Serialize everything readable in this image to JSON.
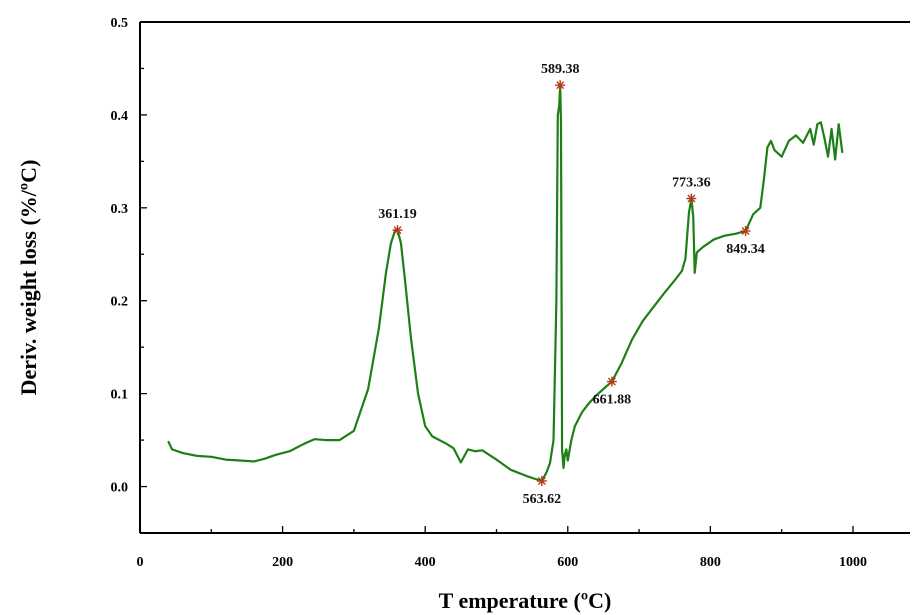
{
  "chart_data": {
    "type": "line",
    "xlabel": "T emperature (ºC)",
    "ylabel": "Deriv. weight loss (%/ºC)",
    "xlim": [
      0,
      1080
    ],
    "ylim": [
      -0.05,
      0.5
    ],
    "x_ticks": [
      {
        "value": 0,
        "label": "0"
      },
      {
        "value": 200,
        "label": "200"
      },
      {
        "value": 400,
        "label": "400"
      },
      {
        "value": 600,
        "label": "600"
      },
      {
        "value": 800,
        "label": "800"
      },
      {
        "value": 1000,
        "label": "1000"
      }
    ],
    "y_ticks": [
      {
        "value": 0.0,
        "label": "0.0"
      },
      {
        "value": 0.1,
        "label": "0.1"
      },
      {
        "value": 0.2,
        "label": "0.2"
      },
      {
        "value": 0.3,
        "label": "0.3"
      },
      {
        "value": 0.4,
        "label": "0.4"
      },
      {
        "value": 0.5,
        "label": "0.5"
      }
    ],
    "grid": false,
    "series": [
      {
        "color": "#1f7f17",
        "x": [
          40,
          45,
          60,
          80,
          100,
          120,
          140,
          160,
          175,
          190,
          210,
          230,
          245,
          260,
          280,
          300,
          320,
          335,
          345,
          352,
          358,
          361.19,
          366,
          372,
          380,
          390,
          400,
          410,
          420,
          430,
          440,
          450,
          460,
          470,
          480,
          500,
          520,
          540,
          555,
          563.62,
          570,
          575,
          580,
          584,
          586,
          588,
          589.38,
          590.5,
          592,
          594,
          596,
          598,
          600,
          605,
          610,
          620,
          630,
          640,
          650,
          661.88,
          675,
          690,
          705,
          720,
          735,
          750,
          760,
          765,
          770,
          773.36,
          776,
          778,
          781,
          790,
          805,
          820,
          835,
          849.34,
          860,
          870,
          875,
          880,
          885,
          890,
          900,
          910,
          920,
          930,
          940,
          945,
          950,
          955,
          960,
          965,
          970,
          975,
          980,
          985
        ],
        "values": [
          0.048,
          0.04,
          0.036,
          0.033,
          0.032,
          0.029,
          0.028,
          0.027,
          0.03,
          0.034,
          0.038,
          0.046,
          0.051,
          0.05,
          0.05,
          0.06,
          0.105,
          0.17,
          0.23,
          0.262,
          0.276,
          0.276,
          0.262,
          0.22,
          0.16,
          0.1,
          0.065,
          0.054,
          0.05,
          0.046,
          0.041,
          0.026,
          0.04,
          0.038,
          0.039,
          0.029,
          0.018,
          0.012,
          0.008,
          0.006,
          0.015,
          0.025,
          0.05,
          0.2,
          0.4,
          0.41,
          0.432,
          0.39,
          0.04,
          0.02,
          0.035,
          0.04,
          0.028,
          0.05,
          0.065,
          0.08,
          0.09,
          0.098,
          0.105,
          0.113,
          0.132,
          0.158,
          0.178,
          0.193,
          0.208,
          0.222,
          0.232,
          0.245,
          0.295,
          0.31,
          0.29,
          0.23,
          0.252,
          0.258,
          0.266,
          0.27,
          0.272,
          0.275,
          0.293,
          0.3,
          0.33,
          0.365,
          0.372,
          0.362,
          0.355,
          0.372,
          0.378,
          0.37,
          0.385,
          0.368,
          0.39,
          0.392,
          0.375,
          0.355,
          0.385,
          0.352,
          0.39,
          0.36
        ]
      }
    ],
    "annotations": [
      {
        "x": 361.19,
        "y": 0.276,
        "label": "361.19",
        "position": "above"
      },
      {
        "x": 563.62,
        "y": 0.006,
        "label": "563.62",
        "position": "below"
      },
      {
        "x": 589.38,
        "y": 0.432,
        "label": "589.38",
        "position": "above"
      },
      {
        "x": 661.88,
        "y": 0.113,
        "label": "661.88",
        "position": "below"
      },
      {
        "x": 773.36,
        "y": 0.31,
        "label": "773.36",
        "position": "above"
      },
      {
        "x": 849.34,
        "y": 0.275,
        "label": "849.34",
        "position": "below"
      }
    ]
  }
}
